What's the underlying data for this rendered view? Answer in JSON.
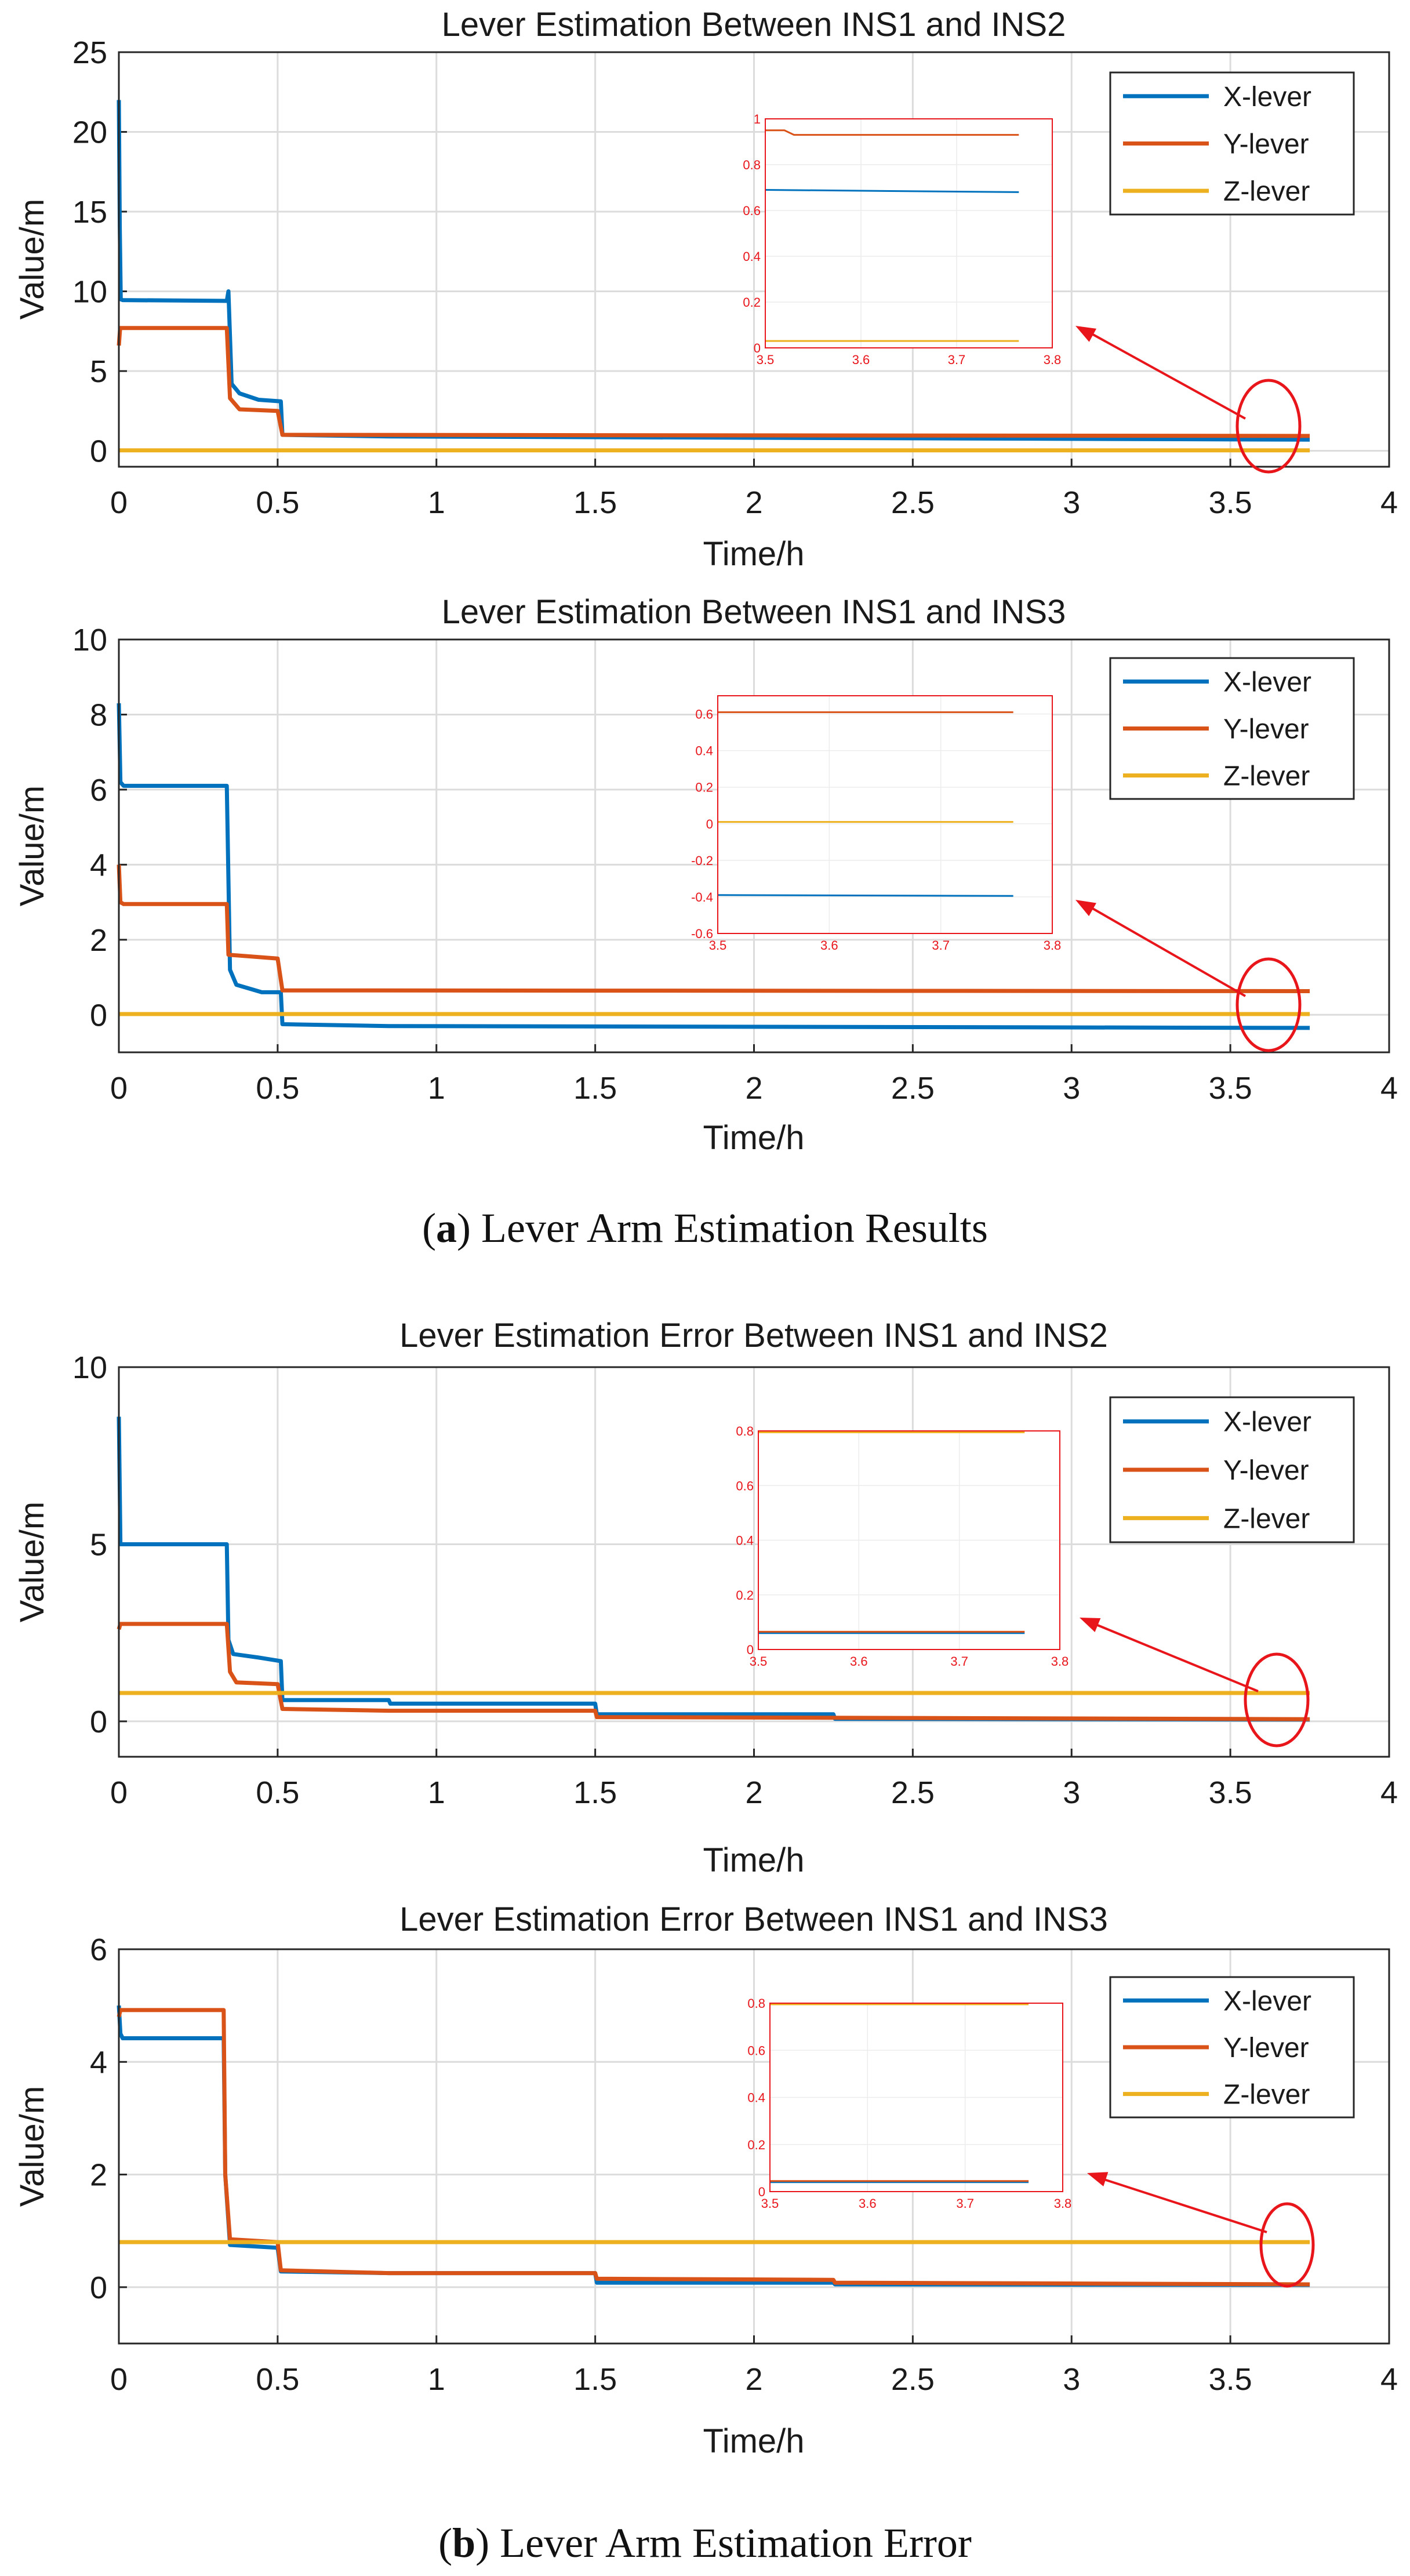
{
  "captions": {
    "a_letter": "a",
    "a_text": "Lever Arm Estimation Results",
    "b_letter": "b",
    "b_text": "Lever Arm Estimation Error"
  },
  "colors": {
    "x_lever": "#0072bd",
    "y_lever": "#d95319",
    "z_lever": "#edb120",
    "annotation": "#e8151b"
  },
  "chart_data": [
    {
      "type": "line",
      "title": "Lever Estimation Between INS1 and INS2",
      "xlabel": "Time/h",
      "ylabel": "Value/m",
      "xlim": [
        0,
        4
      ],
      "ylim": [
        -1,
        25
      ],
      "xticks": [
        "0",
        "0.5",
        "1",
        "1.5",
        "2",
        "2.5",
        "3",
        "3.5",
        "4"
      ],
      "yticks": [
        "0",
        "5",
        "10",
        "15",
        "20",
        "25"
      ],
      "grid": true,
      "legend": "top-right",
      "series": [
        {
          "name": "X-lever",
          "x": [
            0,
            0.003,
            0.006,
            0.012,
            0.34,
            0.345,
            0.355,
            0.38,
            0.44,
            0.51,
            0.515,
            0.85,
            3.75
          ],
          "y": [
            22,
            14,
            9.5,
            9.45,
            9.4,
            10,
            4.2,
            3.6,
            3.2,
            3.1,
            1.0,
            0.9,
            0.7
          ]
        },
        {
          "name": "Y-lever",
          "x": [
            0,
            0.004,
            0.012,
            0.34,
            0.35,
            0.38,
            0.5,
            0.515,
            3.75
          ],
          "y": [
            6.6,
            7.7,
            7.7,
            7.7,
            3.3,
            2.6,
            2.5,
            1.0,
            0.93
          ]
        },
        {
          "name": "Z-lever",
          "x": [
            0,
            3.75
          ],
          "y": [
            0.03,
            0.03
          ]
        }
      ],
      "inset": {
        "xlim": [
          3.5,
          3.8
        ],
        "ylim": [
          0,
          1
        ],
        "xticks": [
          "3.5",
          "3.6",
          "3.7",
          "3.8"
        ],
        "yticks": [
          "0",
          "0.2",
          "0.4",
          "0.6",
          "0.8",
          "1"
        ],
        "series": [
          {
            "name": "X-lever",
            "x": [
              3.5,
              3.765
            ],
            "y": [
              0.69,
              0.68
            ]
          },
          {
            "name": "Y-lever",
            "x": [
              3.5,
              3.52,
              3.53,
              3.765
            ],
            "y": [
              0.95,
              0.95,
              0.93,
              0.93
            ]
          },
          {
            "name": "Z-lever",
            "x": [
              3.5,
              3.765
            ],
            "y": [
              0.03,
              0.03
            ]
          }
        ]
      }
    },
    {
      "type": "line",
      "title": "Lever Estimation Between INS1 and INS3",
      "xlabel": "Time/h",
      "ylabel": "Value/m",
      "xlim": [
        0,
        4
      ],
      "ylim": [
        -1,
        10
      ],
      "xticks": [
        "0",
        "0.5",
        "1",
        "1.5",
        "2",
        "2.5",
        "3",
        "3.5",
        "4"
      ],
      "yticks": [
        "0",
        "2",
        "4",
        "6",
        "8",
        "10"
      ],
      "grid": true,
      "legend": "top-right",
      "series": [
        {
          "name": "X-lever",
          "x": [
            0,
            0.005,
            0.015,
            0.34,
            0.35,
            0.37,
            0.45,
            0.51,
            0.515,
            0.85,
            3.75
          ],
          "y": [
            8.3,
            6.2,
            6.1,
            6.1,
            1.2,
            0.8,
            0.6,
            0.6,
            -0.25,
            -0.3,
            -0.35
          ]
        },
        {
          "name": "Y-lever",
          "x": [
            0,
            0.005,
            0.015,
            0.34,
            0.345,
            0.5,
            0.515,
            3.75
          ],
          "y": [
            4.0,
            3.0,
            2.95,
            2.95,
            1.6,
            1.5,
            0.65,
            0.63
          ]
        },
        {
          "name": "Z-lever",
          "x": [
            0,
            3.75
          ],
          "y": [
            0.02,
            0.02
          ]
        }
      ],
      "inset": {
        "xlim": [
          3.5,
          3.8
        ],
        "ylim": [
          -0.6,
          0.7
        ],
        "xticks": [
          "3.5",
          "3.6",
          "3.7",
          "3.8"
        ],
        "yticks": [
          "-0.6",
          "-0.4",
          "-0.2",
          "0",
          "0.2",
          "0.4",
          "0.6"
        ],
        "series": [
          {
            "name": "X-lever",
            "x": [
              3.5,
              3.765
            ],
            "y": [
              -0.39,
              -0.395
            ]
          },
          {
            "name": "Y-lever",
            "x": [
              3.5,
              3.765
            ],
            "y": [
              0.61,
              0.61
            ]
          },
          {
            "name": "Z-lever",
            "x": [
              3.5,
              3.765
            ],
            "y": [
              0.01,
              0.01
            ]
          }
        ]
      }
    },
    {
      "type": "line",
      "title": "Lever Estimation Error Between INS1 and INS2",
      "xlabel": "Time/h",
      "ylabel": "Value/m",
      "xlim": [
        0,
        4
      ],
      "ylim": [
        -1,
        10
      ],
      "xticks": [
        "0",
        "0.5",
        "1",
        "1.5",
        "2",
        "2.5",
        "3",
        "3.5",
        "4"
      ],
      "yticks": [
        "0",
        "5",
        "10"
      ],
      "grid": true,
      "legend": "top-right",
      "series": [
        {
          "name": "X-lever",
          "x": [
            0,
            0.005,
            0.012,
            0.34,
            0.345,
            0.36,
            0.44,
            0.51,
            0.515,
            0.85,
            0.855,
            1.5,
            1.505,
            2.25,
            2.255,
            3.75
          ],
          "y": [
            8.6,
            5.0,
            5.0,
            5.0,
            2.3,
            1.9,
            1.8,
            1.7,
            0.6,
            0.6,
            0.5,
            0.5,
            0.2,
            0.2,
            0.07,
            0.05
          ]
        },
        {
          "name": "Y-lever",
          "x": [
            0,
            0.005,
            0.34,
            0.35,
            0.37,
            0.5,
            0.515,
            0.85,
            1.5,
            1.505,
            2.25,
            3.75
          ],
          "y": [
            2.6,
            2.75,
            2.75,
            1.4,
            1.1,
            1.05,
            0.35,
            0.3,
            0.3,
            0.12,
            0.1,
            0.06
          ]
        },
        {
          "name": "Z-lever",
          "x": [
            0,
            3.75
          ],
          "y": [
            0.8,
            0.8
          ]
        }
      ],
      "inset": {
        "xlim": [
          3.5,
          3.8
        ],
        "ylim": [
          0,
          0.8
        ],
        "xticks": [
          "3.5",
          "3.6",
          "3.7",
          "3.8"
        ],
        "yticks": [
          "0",
          "0.2",
          "0.4",
          "0.6",
          "0.8"
        ],
        "series": [
          {
            "name": "X-lever",
            "x": [
              3.5,
              3.765
            ],
            "y": [
              0.06,
              0.06
            ]
          },
          {
            "name": "Y-lever",
            "x": [
              3.5,
              3.765
            ],
            "y": [
              0.065,
              0.065
            ]
          },
          {
            "name": "Z-lever",
            "x": [
              3.5,
              3.765
            ],
            "y": [
              0.795,
              0.795
            ]
          }
        ]
      }
    },
    {
      "type": "line",
      "title": "Lever Estimation Error Between INS1 and INS3",
      "xlabel": "Time/h",
      "ylabel": "Value/m",
      "xlim": [
        0,
        4
      ],
      "ylim": [
        -1,
        6
      ],
      "xticks": [
        "0",
        "0.5",
        "1",
        "1.5",
        "2",
        "2.5",
        "3",
        "3.5",
        "4"
      ],
      "yticks": [
        "0",
        "2",
        "4",
        "6"
      ],
      "grid": true,
      "legend": "top-right",
      "series": [
        {
          "name": "X-lever",
          "x": [
            0,
            0.005,
            0.012,
            0.33,
            0.335,
            0.35,
            0.5,
            0.51,
            0.85,
            1.5,
            1.505,
            2.25,
            2.255,
            3.75
          ],
          "y": [
            5.0,
            4.5,
            4.42,
            4.42,
            2.0,
            0.75,
            0.7,
            0.28,
            0.25,
            0.25,
            0.08,
            0.08,
            0.05,
            0.04
          ]
        },
        {
          "name": "Y-lever",
          "x": [
            0,
            0.005,
            0.33,
            0.335,
            0.35,
            0.5,
            0.51,
            0.85,
            1.5,
            1.505,
            2.25,
            2.255,
            3.75
          ],
          "y": [
            4.8,
            4.92,
            4.92,
            2.0,
            0.85,
            0.8,
            0.3,
            0.25,
            0.25,
            0.15,
            0.13,
            0.08,
            0.05
          ]
        },
        {
          "name": "Z-lever",
          "x": [
            0,
            3.75
          ],
          "y": [
            0.8,
            0.8
          ]
        }
      ],
      "inset": {
        "xlim": [
          3.5,
          3.8
        ],
        "ylim": [
          0,
          0.8
        ],
        "xticks": [
          "3.5",
          "3.6",
          "3.7",
          "3.8"
        ],
        "yticks": [
          "0",
          "0.2",
          "0.4",
          "0.6",
          "0.8"
        ],
        "series": [
          {
            "name": "X-lever",
            "x": [
              3.5,
              3.765
            ],
            "y": [
              0.04,
              0.04
            ]
          },
          {
            "name": "Y-lever",
            "x": [
              3.5,
              3.765
            ],
            "y": [
              0.045,
              0.045
            ]
          },
          {
            "name": "Z-lever",
            "x": [
              3.5,
              3.765
            ],
            "y": [
              0.795,
              0.795
            ]
          }
        ]
      }
    }
  ]
}
